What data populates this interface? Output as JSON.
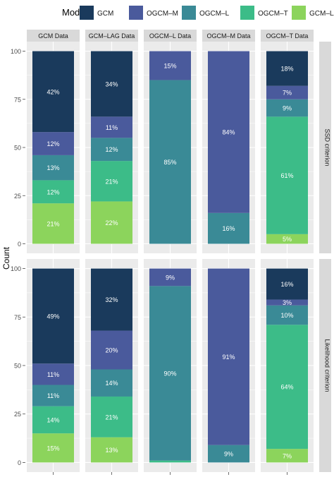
{
  "chart_data": {
    "type": "bar",
    "stacked": true,
    "facet_columns": [
      "GCM Data",
      "GCM–LAG Data",
      "OGCM–L Data",
      "OGCM–M Data",
      "OGCM–T Data"
    ],
    "facet_rows": [
      "SSD criterion",
      "Likelihood criterion"
    ],
    "ylabel": "Count",
    "ylim": [
      0,
      100
    ],
    "yticks": [
      "0",
      "25",
      "50",
      "75",
      "100"
    ],
    "legend": {
      "title": "Model",
      "position": "top",
      "entries": [
        {
          "name": "GCM",
          "color": "#1a3a5c"
        },
        {
          "name": "OGCM–M",
          "color": "#4a5a9c"
        },
        {
          "name": "OGCM–L",
          "color": "#3a8a96"
        },
        {
          "name": "OGCM–T",
          "color": "#3cbc88"
        },
        {
          "name": "GCM–LAG",
          "color": "#8cd45c"
        }
      ]
    },
    "stack_order": [
      "GCM–LAG",
      "OGCM–T",
      "OGCM–L",
      "OGCM–M",
      "GCM"
    ],
    "panels": [
      {
        "row": 0,
        "col": 0,
        "values": {
          "GCM–LAG": 21,
          "OGCM–T": 12,
          "OGCM–L": 13,
          "OGCM–M": 12,
          "GCM": 42
        },
        "labels": {
          "GCM–LAG": "21%",
          "OGCM–T": "12%",
          "OGCM–L": "13%",
          "OGCM–M": "12%",
          "GCM": "42%"
        }
      },
      {
        "row": 0,
        "col": 1,
        "values": {
          "GCM–LAG": 22,
          "OGCM–T": 21,
          "OGCM–L": 12,
          "OGCM–M": 11,
          "GCM": 34
        },
        "labels": {
          "GCM–LAG": "22%",
          "OGCM–T": "21%",
          "OGCM–L": "12%",
          "OGCM–M": "11%",
          "GCM": "34%"
        }
      },
      {
        "row": 0,
        "col": 2,
        "values": {
          "OGCM–L": 85,
          "OGCM–M": 15
        },
        "labels": {
          "OGCM–L": "85%",
          "OGCM–M": "15%"
        }
      },
      {
        "row": 0,
        "col": 3,
        "values": {
          "OGCM–L": 16,
          "OGCM–M": 84
        },
        "labels": {
          "OGCM–L": "16%",
          "OGCM–M": "84%"
        }
      },
      {
        "row": 0,
        "col": 4,
        "values": {
          "GCM–LAG": 5,
          "OGCM–T": 61,
          "OGCM–L": 9,
          "OGCM–M": 7,
          "GCM": 18
        },
        "labels": {
          "GCM–LAG": "5%",
          "OGCM–T": "61%",
          "OGCM–L": "9%",
          "OGCM–M": "7%",
          "GCM": "18%"
        }
      },
      {
        "row": 1,
        "col": 0,
        "values": {
          "GCM–LAG": 15,
          "OGCM–T": 14,
          "OGCM–L": 11,
          "OGCM–M": 11,
          "GCM": 49
        },
        "labels": {
          "GCM–LAG": "15%",
          "OGCM–T": "14%",
          "OGCM–L": "11%",
          "OGCM–M": "11%",
          "GCM": "49%"
        }
      },
      {
        "row": 1,
        "col": 1,
        "values": {
          "GCM–LAG": 13,
          "OGCM–T": 21,
          "OGCM–L": 14,
          "OGCM–M": 20,
          "GCM": 32
        },
        "labels": {
          "GCM–LAG": "13%",
          "OGCM–T": "21%",
          "OGCM–L": "14%",
          "OGCM–M": "20%",
          "GCM": "32%"
        }
      },
      {
        "row": 1,
        "col": 2,
        "values": {
          "OGCM–T": 1,
          "OGCM–L": 90,
          "OGCM–M": 9
        },
        "labels": {
          "OGCM–L": "90%",
          "OGCM–M": "9%"
        }
      },
      {
        "row": 1,
        "col": 3,
        "values": {
          "OGCM–L": 9,
          "OGCM–M": 91
        },
        "labels": {
          "OGCM–L": "9%",
          "OGCM–M": "91%"
        }
      },
      {
        "row": 1,
        "col": 4,
        "values": {
          "GCM–LAG": 7,
          "OGCM–T": 64,
          "OGCM–L": 10,
          "OGCM–M": 3,
          "GCM": 16
        },
        "labels": {
          "GCM–LAG": "7%",
          "OGCM–T": "64%",
          "OGCM–L": "10%",
          "OGCM–M": "3%",
          "GCM": "16%"
        }
      }
    ]
  }
}
